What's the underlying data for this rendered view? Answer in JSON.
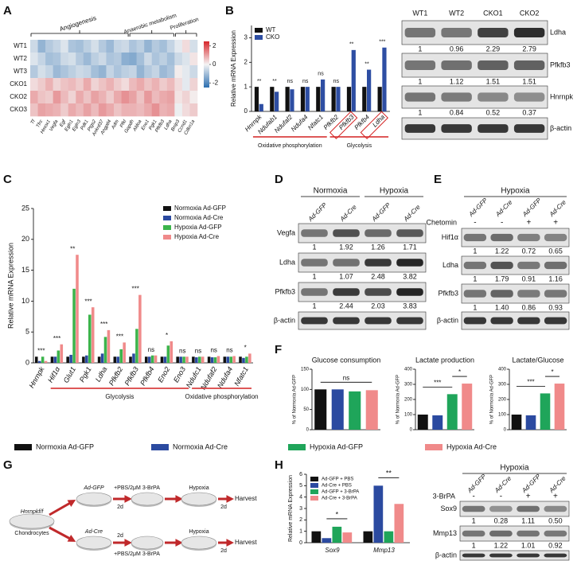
{
  "panel_labels": [
    "A",
    "B",
    "C",
    "D",
    "E",
    "F",
    "G",
    "H"
  ],
  "chart_data": [
    {
      "type": "heatmap",
      "rows": [
        "WT1",
        "WT2",
        "WT3",
        "CKO1",
        "CKO2",
        "CKO3"
      ],
      "groups": [
        {
          "label": "Angiogenesis",
          "columns": [
            "Tf",
            "Tfrc",
            "Hmox1",
            "Vegfa",
            "Egf",
            "Egln1",
            "Egln3",
            "Pdk1",
            "Ptgs2",
            "Ankrd37",
            "Angptl4",
            "Adm",
            "Pfkl"
          ]
        },
        {
          "label": "Anaerobic metabolism",
          "columns": [
            "Gapdh",
            "Aldoa",
            "Eno1",
            "Pgk1",
            "Pfkfb3",
            "Ldha"
          ]
        },
        {
          "label": "Proliferation",
          "columns": [
            "Bnip3",
            "Ccnd1",
            "Cdkn1a"
          ]
        }
      ],
      "values": [
        [
          -0.5,
          -1.2,
          -0.8,
          -0.6,
          -0.3,
          -0.9,
          -1.0,
          -0.7,
          -0.4,
          -0.8,
          -1.1,
          -0.6,
          -0.5,
          -0.9,
          -0.7,
          -1.2,
          -0.8,
          -1.0,
          -0.6,
          -0.2,
          0.3,
          -0.4
        ],
        [
          -0.3,
          -0.6,
          -1.0,
          -0.9,
          -0.5,
          -0.4,
          -0.8,
          -1.1,
          -0.7,
          -0.5,
          -0.9,
          -0.8,
          -1.3,
          -1.4,
          -1.0,
          -0.5,
          -0.9,
          -0.7,
          -1.0,
          -0.5,
          -0.3,
          0.2
        ],
        [
          -0.8,
          -0.4,
          -0.6,
          -1.1,
          -0.9,
          -0.7,
          -0.5,
          -0.6,
          -1.0,
          -1.2,
          -0.6,
          -0.9,
          -0.7,
          -0.6,
          -1.2,
          -0.8,
          -0.6,
          -1.1,
          -0.9,
          0.1,
          -0.2,
          -0.5
        ],
        [
          0.3,
          0.5,
          0.8,
          0.4,
          0.6,
          0.7,
          0.5,
          0.9,
          0.4,
          0.6,
          0.8,
          0.5,
          0.3,
          0.7,
          0.9,
          0.6,
          0.8,
          0.5,
          0.7,
          0.3,
          -0.2,
          0.4
        ],
        [
          0.9,
          0.6,
          0.5,
          1.1,
          0.7,
          0.4,
          0.9,
          0.6,
          1.0,
          0.8,
          0.5,
          0.9,
          1.2,
          1.0,
          0.6,
          1.1,
          0.7,
          0.9,
          1.0,
          0.2,
          0.4,
          0.1
        ],
        [
          0.6,
          1.0,
          0.9,
          0.8,
          0.5,
          0.9,
          0.7,
          1.0,
          0.7,
          1.1,
          0.9,
          0.6,
          0.8,
          0.8,
          0.7,
          0.9,
          1.2,
          0.8,
          0.9,
          -0.1,
          0.3,
          0.5
        ]
      ],
      "zlim": [
        -2.5,
        2.5
      ],
      "colorbar_ticks": [
        2,
        0,
        -2
      ],
      "colors": [
        "#2c6fb0",
        "#f4f4f4",
        "#d7262b"
      ]
    },
    {
      "type": "bar",
      "ylabel": "Relative mRNA Expression",
      "categories": [
        "Hnrnpk",
        "Ndufab1",
        "Ndufaf2",
        "Ndufa4",
        "Nfatc1",
        "Pfkfb2",
        "Pfkfb3",
        "Pfkfb4",
        "Ldha"
      ],
      "series": [
        {
          "name": "WT",
          "color": "#111111",
          "values": [
            1.0,
            1.0,
            1.0,
            1.0,
            1.0,
            1.0,
            1.0,
            1.0,
            1.0
          ]
        },
        {
          "name": "CKO",
          "color": "#2e4ea3",
          "values": [
            0.3,
            0.8,
            0.9,
            1.0,
            1.3,
            1.0,
            2.5,
            1.7,
            2.6
          ]
        }
      ],
      "significance": [
        "**",
        "**",
        "ns",
        "ns",
        "ns",
        "ns",
        "**",
        "**",
        "***"
      ],
      "groups": [
        "Oxidative phosphorylation",
        "Glycolysis"
      ],
      "ylim": [
        0,
        3.5
      ],
      "yticks": [
        0,
        1,
        2,
        3
      ]
    },
    {
      "type": "bar",
      "ylabel": "Relative mRNA Expression",
      "categories": [
        "Hnrnpk",
        "Hif1α",
        "Glut1",
        "Pgk1",
        "Ldha",
        "Pfkfb2",
        "Pfkfb3",
        "Pfkfb4",
        "Eno2",
        "Eno3",
        "Ndufc1",
        "Ndufaf2",
        "Ndufa4",
        "Nfatc1"
      ],
      "series": [
        {
          "name": "Normoxia Ad-GFP",
          "color": "#111111",
          "values": [
            1.0,
            1.0,
            1.0,
            1.0,
            1.0,
            1.0,
            1.0,
            1.0,
            1.0,
            1.0,
            1.0,
            1.0,
            1.0,
            1.0
          ]
        },
        {
          "name": "Normoxia Ad-Cre",
          "color": "#2b4aa0",
          "values": [
            0.3,
            1.0,
            1.3,
            1.2,
            1.5,
            1.0,
            1.5,
            1.0,
            1.0,
            1.0,
            0.9,
            0.9,
            1.0,
            0.8
          ]
        },
        {
          "name": "Hypoxia Ad-GFP",
          "color": "#3cb44b",
          "values": [
            1.0,
            2.0,
            12,
            7.8,
            4.2,
            2.2,
            5.5,
            1.2,
            2.8,
            1.0,
            1.0,
            0.9,
            1.0,
            1.0
          ]
        },
        {
          "name": "Hypoxia Ad-Cre",
          "color": "#f08a8a",
          "values": [
            0.3,
            3.0,
            17.5,
            9,
            5.3,
            3.3,
            11,
            1.2,
            3.5,
            1.0,
            1.0,
            1.1,
            1.1,
            1.5
          ]
        }
      ],
      "significance": [
        "***",
        "***",
        "**",
        "***",
        "***",
        "***",
        "***",
        "ns",
        "*",
        "ns",
        "ns",
        "ns",
        "ns",
        "*"
      ],
      "groups": [
        "Glycolysis",
        "Oxidative phosphorylation"
      ],
      "ylim": [
        0,
        25
      ],
      "yticks": [
        0,
        5,
        10,
        15,
        20,
        25
      ]
    },
    {
      "type": "bar",
      "series": [
        {
          "name": "Normoxia Ad-GFP",
          "color": "#111111"
        },
        {
          "name": "Normoxia Ad-Cre",
          "color": "#2b4aa0"
        },
        {
          "name": "Hypoxia Ad-GFP",
          "color": "#1fa55a"
        },
        {
          "name": "Hypoxia Ad-Cre",
          "color": "#f08a8a"
        }
      ],
      "panels": [
        {
          "title": "Glucose consumption",
          "ylabel": "% of Normoxia Ad-GFP",
          "values": [
            100,
            100,
            95,
            98
          ],
          "ylim": [
            0,
            150
          ],
          "yticks": [
            0,
            50,
            100,
            150
          ],
          "annotations": [
            "ns"
          ]
        },
        {
          "title": "Lactate production",
          "ylabel": "% of Normoxia Ad-GFP",
          "values": [
            100,
            95,
            235,
            305
          ],
          "ylim": [
            0,
            400
          ],
          "yticks": [
            0,
            100,
            200,
            300,
            400
          ],
          "annotations": [
            "***",
            "*"
          ]
        },
        {
          "title": "Lactate/Glucose",
          "ylabel": "% of Normoxia Ad-GFP",
          "values": [
            100,
            95,
            240,
            305
          ],
          "ylim": [
            0,
            400
          ],
          "yticks": [
            0,
            100,
            200,
            300,
            400
          ],
          "annotations": [
            "***",
            "*"
          ]
        }
      ]
    },
    {
      "type": "bar",
      "ylabel": "Relative mRNA Expression",
      "categories": [
        "Sox9",
        "Mmp13"
      ],
      "series": [
        {
          "name": "Ad-GFP + PBS",
          "color": "#111111",
          "values": [
            1.0,
            1.0
          ]
        },
        {
          "name": "Ad-Cre + PBS",
          "color": "#2b4aa0",
          "values": [
            0.4,
            5.0
          ]
        },
        {
          "name": "Ad-GFP + 3-BrPA",
          "color": "#1fa55a",
          "values": [
            1.4,
            1.0
          ]
        },
        {
          "name": "Ad-Cre + 3-BrPA",
          "color": "#f08a8a",
          "values": [
            0.9,
            3.4
          ]
        }
      ],
      "significance": [
        "*",
        "**"
      ],
      "ylim": [
        0,
        6
      ],
      "yticks": [
        0,
        1,
        2,
        3,
        4,
        5,
        6
      ]
    }
  ],
  "blots": [
    {
      "lanes": [
        "WT1",
        "WT2",
        "CKO1",
        "CKO2"
      ],
      "rows": [
        {
          "label": "Ldha",
          "values": [
            1,
            0.96,
            2.29,
            2.79
          ]
        },
        {
          "label": "Pfkfb3",
          "values": [
            1,
            1.12,
            1.51,
            1.51
          ]
        },
        {
          "label": "Hnrnpk",
          "values": [
            1,
            0.84,
            0.52,
            0.37
          ]
        },
        {
          "label": "β-actin"
        }
      ]
    },
    {
      "header": [
        "Normoxia",
        "Hypoxia"
      ],
      "lanes": [
        "Ad-GFP",
        "Ad-Cre",
        "Ad-GFP",
        "Ad-Cre"
      ],
      "rows": [
        {
          "label": "Vegfa",
          "values": [
            1,
            1.92,
            1.26,
            1.71
          ]
        },
        {
          "label": "Ldha",
          "values": [
            1,
            1.07,
            2.48,
            3.82
          ]
        },
        {
          "label": "Pfkfb3",
          "values": [
            1,
            2.44,
            2.03,
            3.83
          ]
        },
        {
          "label": "β-actin"
        }
      ]
    },
    {
      "header": [
        "Hypoxia"
      ],
      "lanes": [
        "Ad-GFP",
        "Ad-Cre",
        "Ad-GFP",
        "Ad-Cre"
      ],
      "treatment": {
        "label": "Chetomin",
        "values": [
          "-",
          "-",
          "+",
          "+"
        ]
      },
      "rows": [
        {
          "label": "Hif1α",
          "values": [
            1,
            1.22,
            0.72,
            0.65
          ]
        },
        {
          "label": "Ldha",
          "values": [
            1,
            1.79,
            0.91,
            1.16
          ]
        },
        {
          "label": "Pfkfb3",
          "values": [
            1,
            1.4,
            0.86,
            0.93
          ],
          "value_labels": [
            "1",
            "1.40",
            "0.86",
            "0.93"
          ]
        },
        {
          "label": "β-actin"
        }
      ]
    },
    {
      "header": [
        "Hypoxia"
      ],
      "lanes": [
        "Ad-GFP",
        "Ad-Cre",
        "Ad-GFP",
        "Ad-Cre"
      ],
      "treatment": {
        "label": "3-BrPA",
        "values": [
          "-",
          "-",
          "+",
          "+"
        ]
      },
      "rows": [
        {
          "label": "Sox9",
          "values": [
            1,
            0.28,
            1.11,
            0.5
          ],
          "value_labels": [
            "1",
            "0.28",
            "1.11",
            "0.50"
          ]
        },
        {
          "label": "Mmp13",
          "values": [
            1,
            1.22,
            1.01,
            0.92
          ]
        },
        {
          "label": "β-actin"
        }
      ]
    }
  ],
  "diagram": {
    "source": [
      "Hnrnpkf/f",
      "Chondrocytes"
    ],
    "rows": [
      {
        "virus": "Ad-GFP",
        "treatment": "+PBS/2μM 3-BrPA",
        "first_duration": "2d",
        "condition": "Hypoxia",
        "second_duration": "2d",
        "end": "Harvest"
      },
      {
        "virus": "Ad-Cre",
        "treatment": "+PBS/2μM 3-BrPA",
        "first_duration": "2d",
        "condition": "Hypoxia",
        "second_duration": "2d",
        "end": "Harvest"
      }
    ]
  }
}
